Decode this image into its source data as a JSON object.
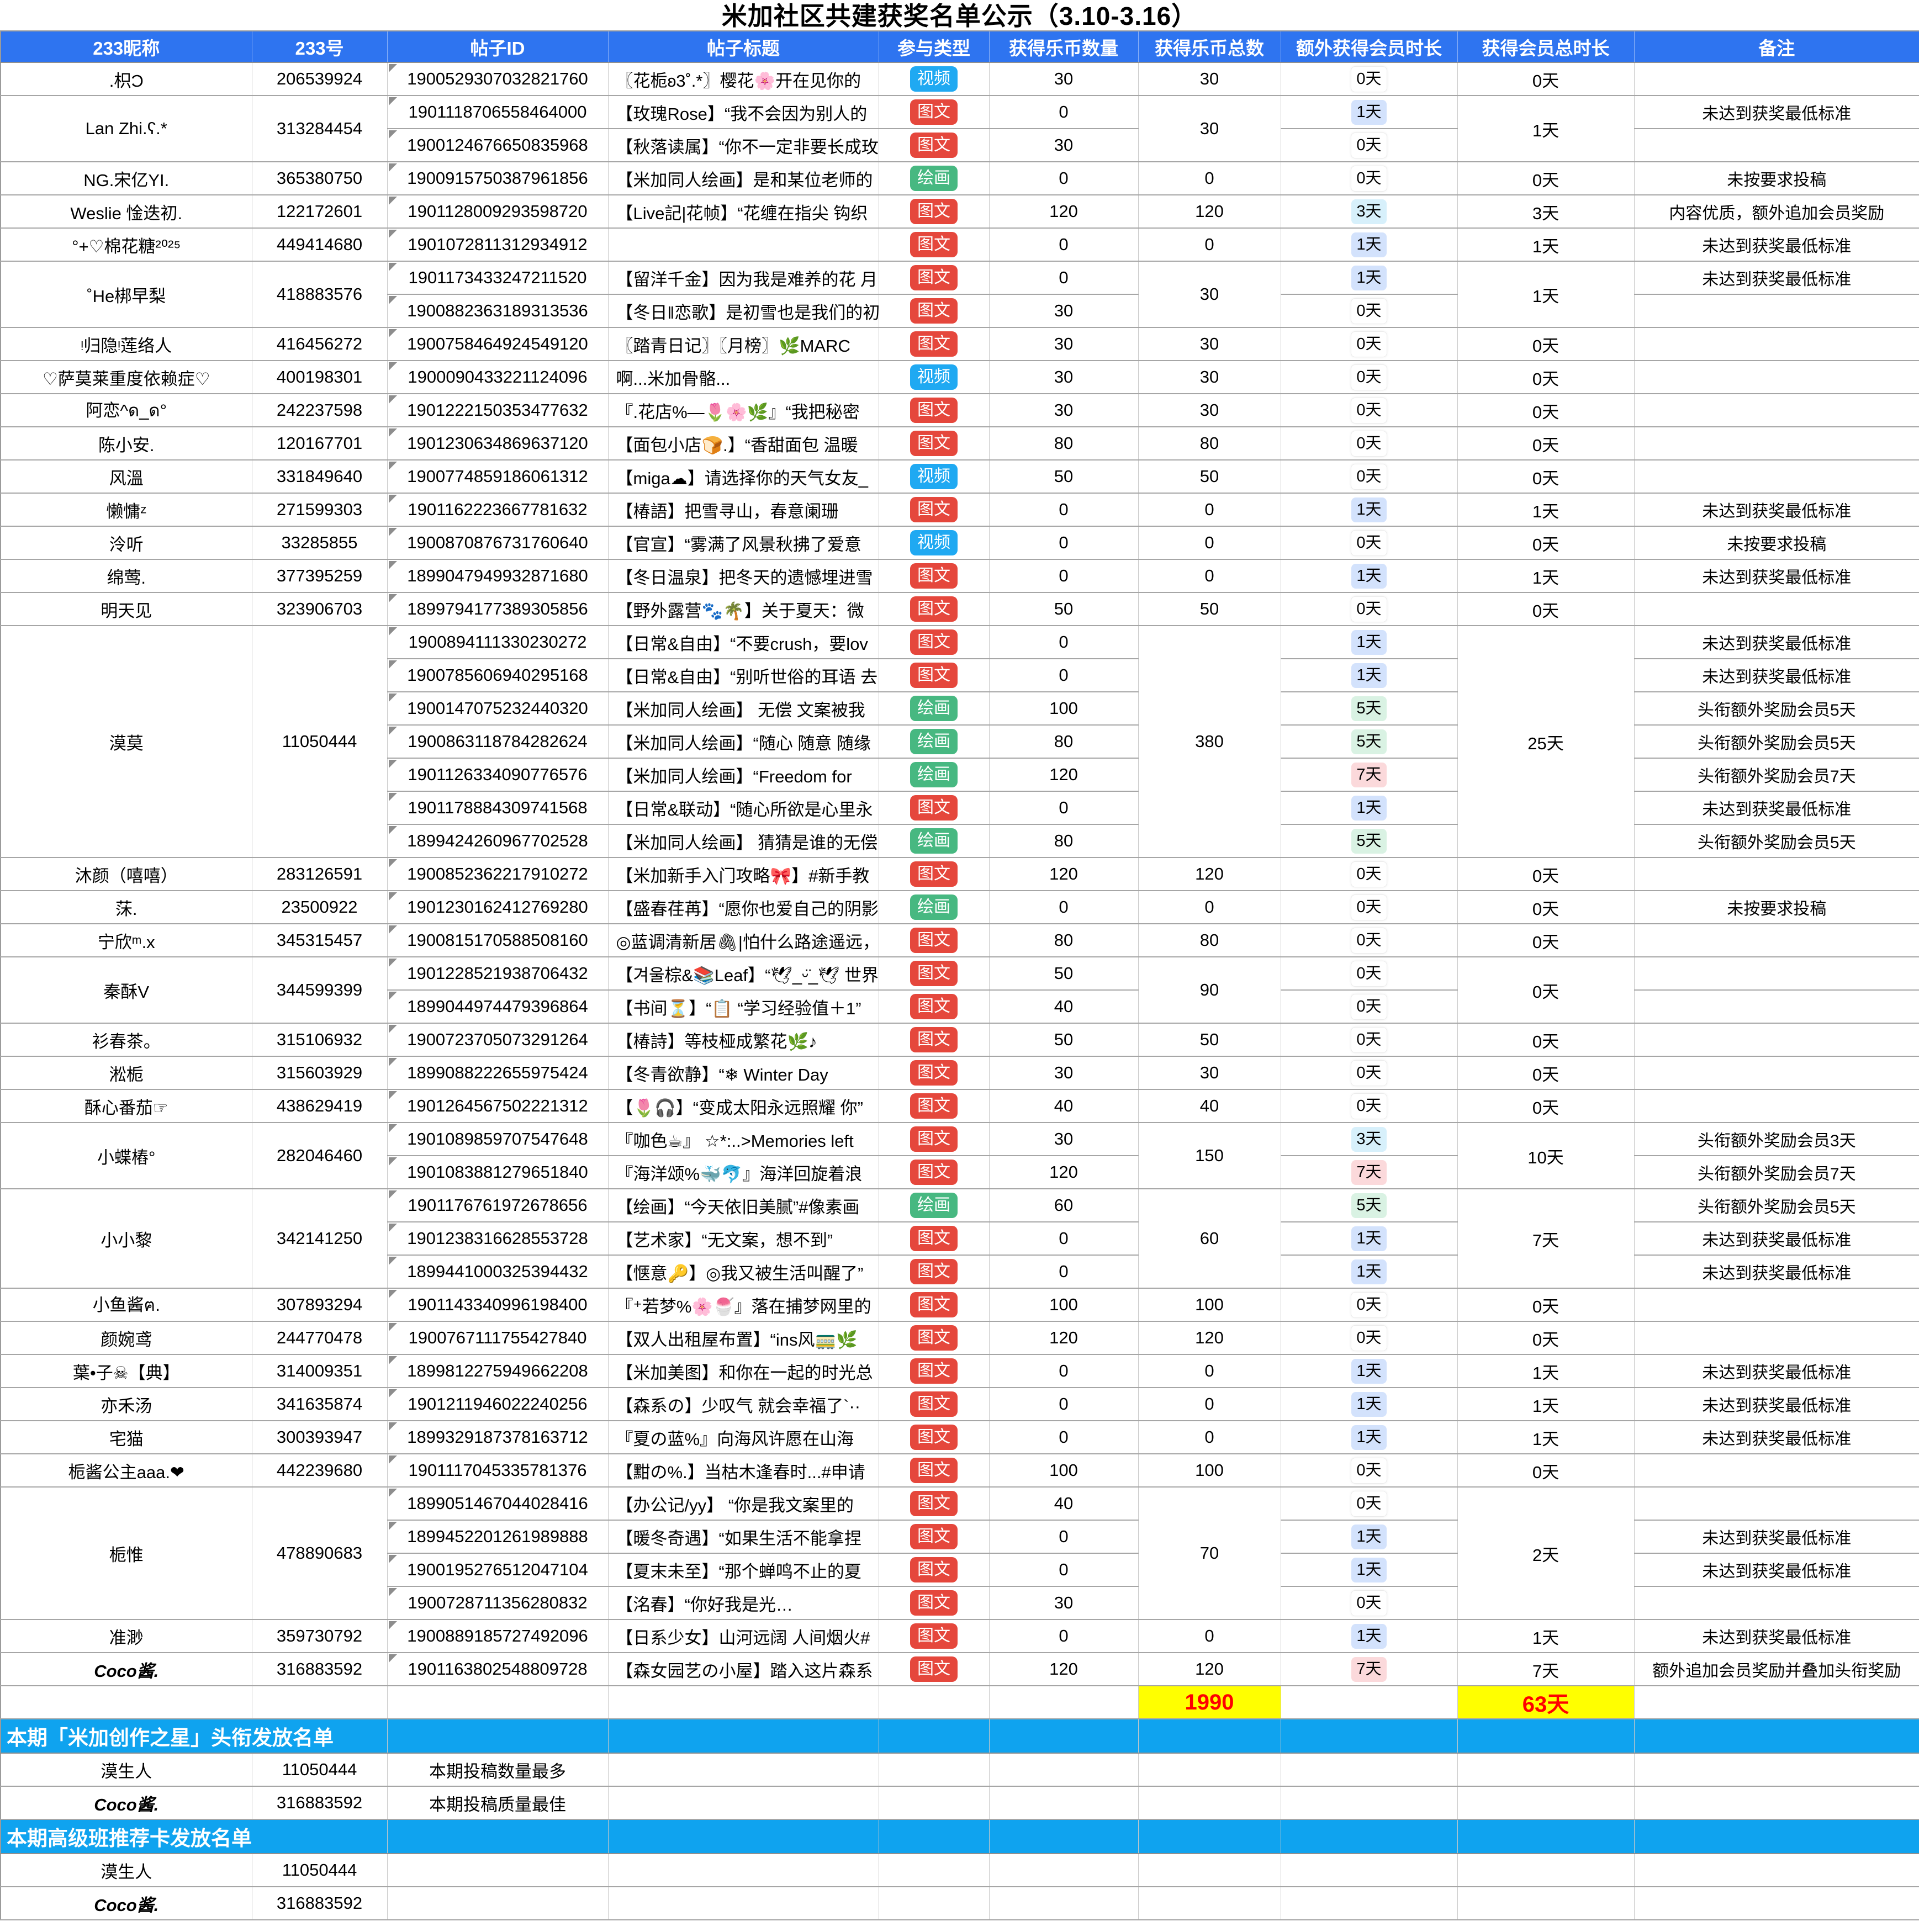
{
  "page_title": "米加社区共建获奖名单公示（3.10-3.16）",
  "columns": [
    "233昵称",
    "233号",
    "帖子ID",
    "帖子标题",
    "参与类型",
    "获得乐币数量",
    "获得乐币总数",
    "额外获得会员时长",
    "获得会员总时长",
    "备注"
  ],
  "type_colors": {
    "视频": "#1FA9F2",
    "图文": "#E5473C",
    "绘画": "#47B881"
  },
  "day_badge_colors": {
    "0": "#FFFFFF",
    "1": "#D3E2FC",
    "3": "#D7F0FB",
    "5": "#D9F2E3",
    "7": "#FBD9DB"
  },
  "groups": [
    {
      "nick": ".枳Ɔ",
      "num": "206539924",
      "total_coins": "30",
      "total_days": "0天",
      "posts": [
        {
          "id": "1900529307032821760",
          "title": "〖花栀ʚ3˚.*〗樱花🌸开在见你的",
          "type": "视频",
          "coins": "30",
          "days": "0天",
          "remark": ""
        }
      ]
    },
    {
      "nick": "Lan Zhi.ʕ.*",
      "num": "313284454",
      "total_coins": "30",
      "total_days": "1天",
      "posts": [
        {
          "id": "1901118706558464000",
          "title": "【玫瑰Rose】“我不会因为别人的",
          "type": "图文",
          "coins": "0",
          "days": "1天",
          "remark": "未达到获奖最低标准"
        },
        {
          "id": "1900124676650835968",
          "title": "【秋落读属】“你不一定非要长成玫",
          "type": "图文",
          "coins": "30",
          "days": "0天",
          "remark": ""
        }
      ]
    },
    {
      "nick": "NG.宋亿YI.",
      "num": "365380750",
      "total_coins": "0",
      "total_days": "0天",
      "posts": [
        {
          "id": "1900915750387961856",
          "title": "【米加同人绘画】是和某位老师的",
          "type": "绘画",
          "coins": "0",
          "days": "0天",
          "remark": "未按要求投稿"
        }
      ]
    },
    {
      "nick": "Weslie 惍迭初.",
      "num": "122172601",
      "total_coins": "120",
      "total_days": "3天",
      "posts": [
        {
          "id": "1901128009293598720",
          "title": "【Live記|花帧】“花缠在指尖 钩织",
          "type": "图文",
          "coins": "120",
          "days": "3天",
          "remark": "内容优质，额外追加会员奖励"
        }
      ]
    },
    {
      "nick": "°+♡棉花糖²⁰²⁵",
      "num": "449414680",
      "total_coins": "0",
      "total_days": "1天",
      "posts": [
        {
          "id": "1901072811312934912",
          "title": "",
          "type": "图文",
          "coins": "0",
          "days": "1天",
          "remark": "未达到获奖最低标准"
        }
      ]
    },
    {
      "nick": "˚He梆早梨",
      "num": "418883576",
      "total_coins": "30",
      "total_days": "1天",
      "posts": [
        {
          "id": "1901173433247211520",
          "title": "【留洋千金】因为我是难养的花 月",
          "type": "图文",
          "coins": "0",
          "days": "1天",
          "remark": "未达到获奖最低标准"
        },
        {
          "id": "1900882363189313536",
          "title": "【冬日‖恋歌】是初雪也是我们的初",
          "type": "图文",
          "coins": "30",
          "days": "0天",
          "remark": ""
        }
      ]
    },
    {
      "nick": "ᵎ归隐ᵎ莲络人",
      "num": "416456272",
      "total_coins": "30",
      "total_days": "0天",
      "posts": [
        {
          "id": "1900758464924549120",
          "title": "〖踏青日记〗〖月榜〗🌿MARC",
          "type": "图文",
          "coins": "30",
          "days": "0天",
          "remark": ""
        }
      ]
    },
    {
      "nick": "♡萨莫莱重度依赖症♡",
      "num": "400198301",
      "total_coins": "30",
      "total_days": "0天",
      "posts": [
        {
          "id": "1900090433221124096",
          "title": "啊...米加骨骼...",
          "type": "视频",
          "coins": "30",
          "days": "0天",
          "remark": ""
        }
      ]
    },
    {
      "nick": "阿恋^ด_ด°",
      "num": "242237598",
      "total_coins": "30",
      "total_days": "0天",
      "posts": [
        {
          "id": "1901222150353477632",
          "title": "『.花店%—🌷🌸🌿』“我把秘密",
          "type": "图文",
          "coins": "30",
          "days": "0天",
          "remark": ""
        }
      ]
    },
    {
      "nick": "陈小安.",
      "num": "120167701",
      "total_coins": "80",
      "total_days": "0天",
      "posts": [
        {
          "id": "1901230634869637120",
          "title": "【面包小店🍞.】“香甜面包 温暖",
          "type": "图文",
          "coins": "80",
          "days": "0天",
          "remark": ""
        }
      ]
    },
    {
      "nick": "风溫",
      "num": "331849640",
      "total_coins": "50",
      "total_days": "0天",
      "posts": [
        {
          "id": "1900774859186061312",
          "title": "【miga☁】请选择你的天气女友_",
          "type": "视频",
          "coins": "50",
          "days": "0天",
          "remark": ""
        }
      ]
    },
    {
      "nick": "懒慵ᶻ",
      "num": "271599303",
      "total_coins": "0",
      "total_days": "1天",
      "posts": [
        {
          "id": "1901162223667781632",
          "title": "【椿語】把雪寻山，春意阑珊",
          "type": "图文",
          "coins": "0",
          "days": "1天",
          "remark": "未达到获奖最低标准"
        }
      ]
    },
    {
      "nick": "泠听",
      "num": "33285855",
      "total_coins": "0",
      "total_days": "0天",
      "posts": [
        {
          "id": "1900870876731760640",
          "title": "【官宣】“雾满了风景秋拂了爱意",
          "type": "视频",
          "coins": "0",
          "days": "0天",
          "remark": "未按要求投稿"
        }
      ]
    },
    {
      "nick": "绵莺.",
      "num": "377395259",
      "total_coins": "0",
      "total_days": "1天",
      "posts": [
        {
          "id": "1899047949932871680",
          "title": "【冬日温泉】把冬天的遗憾埋进雪",
          "type": "图文",
          "coins": "0",
          "days": "1天",
          "remark": "未达到获奖最低标准"
        }
      ]
    },
    {
      "nick": "明天见",
      "num": "323906703",
      "total_coins": "50",
      "total_days": "0天",
      "posts": [
        {
          "id": "1899794177389305856",
          "title": "【野外露营🐾🌴】关于夏天：微",
          "type": "图文",
          "coins": "50",
          "days": "0天",
          "remark": ""
        }
      ]
    },
    {
      "nick": "漠莫",
      "num": "11050444",
      "total_coins": "380",
      "total_days": "25天",
      "posts": [
        {
          "id": "1900894111330230272",
          "title": "【日常&自由】“不要crush，要lov",
          "type": "图文",
          "coins": "0",
          "days": "1天",
          "remark": "未达到获奖最低标准"
        },
        {
          "id": "1900785606940295168",
          "title": "【日常&自由】“别听世俗的耳语 去",
          "type": "图文",
          "coins": "0",
          "days": "1天",
          "remark": "未达到获奖最低标准"
        },
        {
          "id": "1900147075232440320",
          "title": "【米加同人绘画】 无偿 文案被我",
          "type": "绘画",
          "coins": "100",
          "days": "5天",
          "remark": "头衔额外奖励会员5天"
        },
        {
          "id": "1900863118784282624",
          "title": "【米加同人绘画】“随心 随意 随缘",
          "type": "绘画",
          "coins": "80",
          "days": "5天",
          "remark": "头衔额外奖励会员5天"
        },
        {
          "id": "1901126334090776576",
          "title": "【米加同人绘画】“Freedom for",
          "type": "绘画",
          "coins": "120",
          "days": "7天",
          "remark": "头衔额外奖励会员7天"
        },
        {
          "id": "1901178884309741568",
          "title": "【日常&联动】“随心所欲是心里永",
          "type": "图文",
          "coins": "0",
          "days": "1天",
          "remark": "未达到获奖最低标准"
        },
        {
          "id": "1899424260967702528",
          "title": "【米加同人绘画】 猜猜是谁的无偿",
          "type": "绘画",
          "coins": "80",
          "days": "5天",
          "remark": "头衔额外奖励会员5天"
        }
      ]
    },
    {
      "nick": "沐颜（嘻嘻）",
      "num": "283126591",
      "total_coins": "120",
      "total_days": "0天",
      "posts": [
        {
          "id": "1900852362217910272",
          "title": "【米加新手入门攻略🎀】#新手教",
          "type": "图文",
          "coins": "120",
          "days": "0天",
          "remark": ""
        }
      ]
    },
    {
      "nick": "莯.",
      "num": "23500922",
      "total_coins": "0",
      "total_days": "0天",
      "posts": [
        {
          "id": "1901230162412769280",
          "title": "【盛春荏苒】“愿你也爱自己的阴影",
          "type": "绘画",
          "coins": "0",
          "days": "0天",
          "remark": "未按要求投稿"
        }
      ]
    },
    {
      "nick": "宁欣ᵐ.x",
      "num": "345315457",
      "total_coins": "80",
      "total_days": "0天",
      "posts": [
        {
          "id": "1900815170588508160",
          "title": "◎蓝调清新居🖇|怕什么路途遥远，",
          "type": "图文",
          "coins": "80",
          "days": "0天",
          "remark": ""
        }
      ]
    },
    {
      "nick": "秦酥V",
      "num": "344599399",
      "total_coins": "90",
      "total_days": "0天",
      "posts": [
        {
          "id": "1901228521938706432",
          "title": "【겨울棕&📚Leaf】“🕊_ᵕ̈_🕊 世界",
          "type": "图文",
          "coins": "50",
          "days": "0天",
          "remark": ""
        },
        {
          "id": "1899044974479396864",
          "title": "【书间⏳】“📋 “学习经验值＋1”",
          "type": "图文",
          "coins": "40",
          "days": "0天",
          "remark": ""
        }
      ]
    },
    {
      "nick": "衫春茶。",
      "num": "315106932",
      "total_coins": "50",
      "total_days": "0天",
      "posts": [
        {
          "id": "1900723705073291264",
          "title": "【椿詩】等枝桠成繁花🌿♪",
          "type": "图文",
          "coins": "50",
          "days": "0天",
          "remark": ""
        }
      ]
    },
    {
      "nick": "淞栀",
      "num": "315603929",
      "total_coins": "30",
      "total_days": "0天",
      "posts": [
        {
          "id": "1899088222655975424",
          "title": "【冬青欲静】“❄ Winter Day",
          "type": "图文",
          "coins": "30",
          "days": "0天",
          "remark": ""
        }
      ]
    },
    {
      "nick": "酥心番茄☞",
      "num": "438629419",
      "total_coins": "40",
      "total_days": "0天",
      "posts": [
        {
          "id": "1901264567502221312",
          "title": "【🌷🎧】“变成太阳永远照耀 你”",
          "type": "图文",
          "coins": "40",
          "days": "0天",
          "remark": ""
        }
      ]
    },
    {
      "nick": "小蝶樁°",
      "num": "282046460",
      "total_coins": "150",
      "total_days": "10天",
      "posts": [
        {
          "id": "1901089859707547648",
          "title": "『咖色☕』 ☆*:..>Memories left",
          "type": "图文",
          "coins": "30",
          "days": "3天",
          "remark": "头衔额外奖励会员3天"
        },
        {
          "id": "1901083881279651840",
          "title": "『海洋颂%🐳🐬』海洋回旋着浪",
          "type": "图文",
          "coins": "120",
          "days": "7天",
          "remark": "头衔额外奖励会员7天"
        }
      ]
    },
    {
      "nick": "小小黎",
      "num": "342141250",
      "total_coins": "60",
      "total_days": "7天",
      "posts": [
        {
          "id": "1901176761972678656",
          "title": "【绘画】“今天依旧美腻”#像素画",
          "type": "绘画",
          "coins": "60",
          "days": "5天",
          "remark": "头衔额外奖励会员5天"
        },
        {
          "id": "1901238316628553728",
          "title": "【艺术家】“无文案，想不到”",
          "type": "图文",
          "coins": "0",
          "days": "1天",
          "remark": "未达到获奖最低标准"
        },
        {
          "id": "1899441000325394432",
          "title": "【惬意🔑】◎我又被生活叫醒了”",
          "type": "图文",
          "coins": "0",
          "days": "1天",
          "remark": "未达到获奖最低标准"
        }
      ]
    },
    {
      "nick": "小鱼酱ฅ.",
      "num": "307893294",
      "total_coins": "100",
      "total_days": "0天",
      "posts": [
        {
          "id": "1901143340996198400",
          "title": "『⁺若梦%🌸🍧』落在捕梦网里的",
          "type": "图文",
          "coins": "100",
          "days": "0天",
          "remark": ""
        }
      ]
    },
    {
      "nick": "颜婉鸢",
      "num": "244770478",
      "total_coins": "120",
      "total_days": "0天",
      "posts": [
        {
          "id": "1900767111755427840",
          "title": "【双人出租屋布置】“ins风🚃🌿",
          "type": "图文",
          "coins": "120",
          "days": "0天",
          "remark": ""
        }
      ]
    },
    {
      "nick": "葉•子☠【典】",
      "num": "314009351",
      "total_coins": "0",
      "total_days": "1天",
      "posts": [
        {
          "id": "1899812275949662208",
          "title": "【米加美图】和你在一起的时光总",
          "type": "图文",
          "coins": "0",
          "days": "1天",
          "remark": "未达到获奖最低标准"
        }
      ]
    },
    {
      "nick": "亦禾汤",
      "num": "341635874",
      "total_coins": "0",
      "total_days": "1天",
      "posts": [
        {
          "id": "1901211946022240256",
          "title": "【森系の】少叹气 就会幸福了`··",
          "type": "图文",
          "coins": "0",
          "days": "1天",
          "remark": "未达到获奖最低标准"
        }
      ]
    },
    {
      "nick": "宅猫",
      "num": "300393947",
      "total_coins": "0",
      "total_days": "1天",
      "posts": [
        {
          "id": "1899329187378163712",
          "title": "『夏の蓝%』向海风许愿在山海",
          "type": "图文",
          "coins": "0",
          "days": "1天",
          "remark": "未达到获奖最低标准"
        }
      ]
    },
    {
      "nick": "栀酱公主aaa.❤",
      "num": "442239680",
      "total_coins": "100",
      "total_days": "0天",
      "posts": [
        {
          "id": "1901117045335781376",
          "title": "【黚の%.】当枯木逢春时...#申请",
          "type": "图文",
          "coins": "100",
          "days": "0天",
          "remark": ""
        }
      ]
    },
    {
      "nick": "栀惟",
      "num": "478890683",
      "total_coins": "70",
      "total_days": "2天",
      "posts": [
        {
          "id": "1899051467044028416",
          "title": "【办公记/yy】 “你是我文案里的",
          "type": "图文",
          "coins": "40",
          "days": "0天",
          "remark": ""
        },
        {
          "id": "1899452201261989888",
          "title": "【暖冬奇遇】“如果生活不能拿捏",
          "type": "图文",
          "coins": "0",
          "days": "1天",
          "remark": "未达到获奖最低标准"
        },
        {
          "id": "1900195276512047104",
          "title": "【夏末未至】“那个蝉鸣不止的夏",
          "type": "图文",
          "coins": "0",
          "days": "1天",
          "remark": "未达到获奖最低标准"
        },
        {
          "id": "1900728711356280832",
          "title": "【洺春】“你好我是光…",
          "type": "图文",
          "coins": "30",
          "days": "0天",
          "remark": ""
        }
      ]
    },
    {
      "nick": "准渺",
      "num": "359730792",
      "total_coins": "0",
      "total_days": "1天",
      "posts": [
        {
          "id": "1900889185727492096",
          "title": "【日系少女】山河远阔 人间烟火#",
          "type": "图文",
          "coins": "0",
          "days": "1天",
          "remark": "未达到获奖最低标准"
        }
      ]
    },
    {
      "nick": "Coco酱.",
      "num": "316883592",
      "em": true,
      "total_coins": "120",
      "total_days": "7天",
      "posts": [
        {
          "id": "1901163802548809728",
          "title": "【森女园艺の小屋】踏入这片森系",
          "type": "图文",
          "coins": "120",
          "days": "7天",
          "remark": "额外追加会员奖励并叠加头衔奖励"
        }
      ]
    }
  ],
  "totals": {
    "coins_total": "1990",
    "days_total": "63天"
  },
  "sections": [
    {
      "banner": "本期「米加创作之星」头衔发放名单",
      "rows": [
        {
          "nick": "漠生人",
          "num": "11050444",
          "desc": "本期投稿数量最多"
        },
        {
          "nick": "Coco酱.",
          "num": "316883592",
          "desc": "本期投稿质量最佳",
          "em": true
        }
      ]
    },
    {
      "banner": "本期高级班推荐卡发放名单",
      "rows": [
        {
          "nick": "漠生人",
          "num": "11050444",
          "desc": ""
        },
        {
          "nick": "Coco酱.",
          "num": "316883592",
          "desc": "",
          "em": true
        }
      ]
    }
  ]
}
